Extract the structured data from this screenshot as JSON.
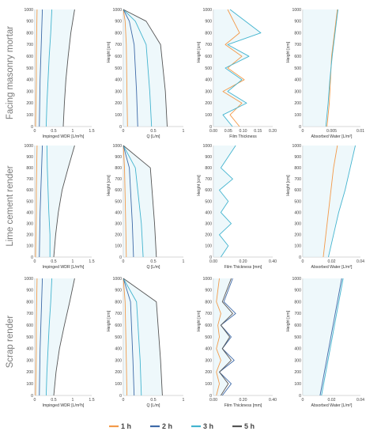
{
  "colors": {
    "1h": "#f39a4a",
    "2h": "#3e6aa8",
    "3h": "#43b4cf",
    "5h": "#555555",
    "green": "#79c14a",
    "fill": "#e3f3f9"
  },
  "rows": [
    {
      "title": "Facing masonry mortar"
    },
    {
      "title": "Lime cement render"
    },
    {
      "title": "Scrap render"
    }
  ],
  "legend": [
    {
      "name": "1 h",
      "color": "#f39a4a"
    },
    {
      "name": "2 h",
      "color": "#3e6aa8"
    },
    {
      "name": "3 h",
      "color": "#43b4cf"
    },
    {
      "name": "5 h",
      "color": "#555555"
    }
  ],
  "chart_data": [
    {
      "type": "line",
      "row": 0,
      "col": 0,
      "xlabel": "Impinged WDR [L/m²h]",
      "ylabel": "",
      "xlim": [
        0,
        1.5
      ],
      "ylim": [
        0,
        1000
      ],
      "xticks": [
        "0",
        "0.5",
        "1",
        "1.5"
      ],
      "yticks": [
        "0",
        "100",
        "200",
        "300",
        "400",
        "500",
        "600",
        "700",
        "800",
        "900",
        "1000"
      ],
      "series": [
        {
          "name": "1 h",
          "x": [
            0.02,
            0.03,
            0.04,
            0.04,
            0.05,
            0.06
          ],
          "y": [
            0,
            200,
            400,
            600,
            800,
            1000
          ]
        },
        {
          "name": "2 h",
          "x": [
            0.12,
            0.13,
            0.14,
            0.16,
            0.18,
            0.2
          ],
          "y": [
            0,
            200,
            400,
            600,
            800,
            1000
          ]
        },
        {
          "name": "3 h",
          "x": [
            0.3,
            0.32,
            0.35,
            0.38,
            0.42,
            0.45
          ],
          "y": [
            0,
            200,
            400,
            600,
            800,
            1000
          ]
        },
        {
          "name": "5 h",
          "x": [
            0.75,
            0.78,
            0.82,
            0.88,
            0.95,
            1.05
          ],
          "y": [
            0,
            200,
            400,
            600,
            800,
            1000
          ]
        }
      ]
    },
    {
      "type": "line",
      "row": 0,
      "col": 1,
      "xlabel": "Q [L/m]",
      "ylabel": "Height [cm]",
      "xlim": [
        0,
        1
      ],
      "ylim": [
        0,
        1000
      ],
      "xticks": [
        "0",
        "0.5",
        "1"
      ],
      "yticks": [
        "0",
        "100",
        "200",
        "300",
        "400",
        "500",
        "600",
        "700",
        "800",
        "900",
        "1000"
      ],
      "series": [
        {
          "name": "1 h",
          "x": [
            0.0,
            0.03,
            0.05,
            0.06,
            0.07
          ],
          "y": [
            1000,
            900,
            700,
            300,
            0
          ]
        },
        {
          "name": "2 h",
          "x": [
            0.0,
            0.1,
            0.18,
            0.22,
            0.24
          ],
          "y": [
            1000,
            900,
            700,
            300,
            0
          ]
        },
        {
          "name": "3 h",
          "x": [
            0.0,
            0.2,
            0.38,
            0.44,
            0.47
          ],
          "y": [
            1000,
            900,
            700,
            300,
            0
          ]
        },
        {
          "name": "5 h",
          "x": [
            0.0,
            0.38,
            0.62,
            0.7,
            0.73
          ],
          "y": [
            1000,
            900,
            700,
            300,
            0
          ]
        }
      ]
    },
    {
      "type": "line",
      "row": 0,
      "col": 2,
      "xlabel": "Film Thickness",
      "ylabel": "Height [cm]",
      "xlim": [
        0,
        0.25
      ],
      "ylim": [
        0,
        1000
      ],
      "xticks": [
        "0.00",
        "0.05",
        "0.10",
        "0.15",
        "0.20"
      ],
      "yticks": [
        "0",
        "100",
        "200",
        "300",
        "400",
        "500",
        "600",
        "700",
        "800",
        "900",
        "1000"
      ],
      "series": [
        {
          "name": "1 h",
          "x": [
            0.11,
            0.07,
            0.12,
            0.04,
            0.13,
            0.06,
            0.12,
            0.05,
            0.11,
            0.06
          ],
          "y": [
            0,
            100,
            200,
            300,
            400,
            500,
            600,
            700,
            800,
            1000
          ]
        },
        {
          "name": "3 h",
          "x": [
            0.08,
            0.04,
            0.14,
            0.06,
            0.12,
            0.05,
            0.15,
            0.06,
            0.2,
            0.07
          ],
          "y": [
            0,
            100,
            200,
            300,
            400,
            500,
            600,
            700,
            800,
            1000
          ]
        }
      ]
    },
    {
      "type": "line",
      "row": 0,
      "col": 3,
      "xlabel": "Absorbed Water [L/m²]",
      "ylabel": "Height [cm]",
      "xlim": [
        0,
        0.01
      ],
      "ylim": [
        0,
        1000
      ],
      "xticks": [
        "0",
        "0.005",
        "0.01"
      ],
      "yticks": [
        "0",
        "100",
        "200",
        "300",
        "400",
        "500",
        "600",
        "700",
        "800",
        "900",
        "1000"
      ],
      "series": [
        {
          "name": "1 h",
          "x": [
            0.0042,
            0.0046,
            0.0048,
            0.005,
            0.0055,
            0.006
          ],
          "y": [
            0,
            200,
            400,
            600,
            800,
            1000
          ]
        },
        {
          "name": "3 h",
          "x": [
            0.004,
            0.0044,
            0.0047,
            0.0051,
            0.0056,
            0.0061
          ],
          "y": [
            0,
            200,
            400,
            600,
            800,
            1000
          ]
        }
      ]
    },
    {
      "type": "line",
      "row": 1,
      "col": 0,
      "xlabel": "Impinged WDR [L/m²h]",
      "ylabel": "",
      "xlim": [
        0,
        1.5
      ],
      "ylim": [
        0,
        1000
      ],
      "xticks": [
        "0",
        "0.5",
        "1",
        "1.5"
      ],
      "yticks": [
        "0",
        "100",
        "200",
        "300",
        "400",
        "500",
        "600",
        "700",
        "800",
        "900",
        "1000"
      ],
      "series": [
        {
          "name": "1 h",
          "x": [
            0.02,
            0.03,
            0.04,
            0.04,
            0.05,
            0.06
          ],
          "y": [
            0,
            200,
            400,
            600,
            800,
            1000
          ]
        },
        {
          "name": "2 h",
          "x": [
            0.12,
            0.13,
            0.14,
            0.16,
            0.18,
            0.2
          ],
          "y": [
            0,
            200,
            400,
            600,
            800,
            1000
          ]
        },
        {
          "name": "3 h",
          "x": [
            0.4,
            0.4,
            0.37,
            0.35,
            0.33,
            0.32
          ],
          "y": [
            0,
            200,
            400,
            600,
            800,
            1000
          ]
        },
        {
          "name": "5 h",
          "x": [
            0.5,
            0.55,
            0.62,
            0.72,
            0.88,
            1.05
          ],
          "y": [
            0,
            200,
            400,
            600,
            800,
            1000
          ]
        }
      ]
    },
    {
      "type": "line",
      "row": 1,
      "col": 1,
      "xlabel": "Q [L/m]",
      "ylabel": "Height [cm]",
      "xlim": [
        0,
        1
      ],
      "ylim": [
        0,
        1000
      ],
      "xticks": [
        "0",
        "0.5",
        "1"
      ],
      "yticks": [
        "0",
        "100",
        "200",
        "300",
        "400",
        "500",
        "600",
        "700",
        "800",
        "900",
        "1000"
      ],
      "series": [
        {
          "name": "1 h",
          "x": [
            0.0,
            0.02,
            0.04,
            0.05
          ],
          "y": [
            1000,
            800,
            300,
            0
          ]
        },
        {
          "name": "2 h",
          "x": [
            0.0,
            0.1,
            0.15,
            0.17
          ],
          "y": [
            1000,
            800,
            300,
            0
          ]
        },
        {
          "name": "3 h",
          "x": [
            0.0,
            0.2,
            0.3,
            0.33
          ],
          "y": [
            1000,
            800,
            300,
            0
          ]
        },
        {
          "name": "5 h",
          "x": [
            0.0,
            0.45,
            0.52,
            0.55
          ],
          "y": [
            1000,
            800,
            300,
            0
          ]
        }
      ]
    },
    {
      "type": "line",
      "row": 1,
      "col": 2,
      "xlabel": "Film Thickness [mm]",
      "ylabel": "Height [cm]",
      "xlim": [
        0,
        0.4
      ],
      "ylim": [
        0,
        1000
      ],
      "xticks": [
        "0.00",
        "0.20",
        "0.40"
      ],
      "yticks": [
        "0",
        "100",
        "200",
        "300",
        "400",
        "500",
        "600",
        "700",
        "800",
        "900",
        "1000"
      ],
      "series": [
        {
          "name": "3 h",
          "x": [
            0.05,
            0.1,
            0.04,
            0.12,
            0.05,
            0.1,
            0.04,
            0.13,
            0.05,
            0.15
          ],
          "y": [
            0,
            100,
            200,
            300,
            400,
            500,
            600,
            700,
            800,
            1000
          ]
        }
      ]
    },
    {
      "type": "line",
      "row": 1,
      "col": 3,
      "xlabel": "Absorbed Water [L/m²]",
      "ylabel": "Height [cm]",
      "xlim": [
        0,
        0.045
      ],
      "ylim": [
        0,
        1000
      ],
      "xticks": [
        "0",
        "0.02",
        "0.04"
      ],
      "yticks": [
        "0",
        "100",
        "200",
        "300",
        "400",
        "500",
        "600",
        "700",
        "800",
        "900",
        "1000"
      ],
      "series": [
        {
          "name": "1 h",
          "x": [
            0.016,
            0.018,
            0.02,
            0.022,
            0.024,
            0.027
          ],
          "y": [
            0,
            200,
            400,
            600,
            800,
            1000
          ]
        },
        {
          "name": "3 h",
          "x": [
            0.02,
            0.024,
            0.028,
            0.033,
            0.037,
            0.041
          ],
          "y": [
            0,
            200,
            400,
            600,
            800,
            1000
          ]
        }
      ]
    },
    {
      "type": "line",
      "row": 2,
      "col": 0,
      "xlabel": "Impinged WDR [L/m²h]",
      "ylabel": "",
      "xlim": [
        0,
        1.5
      ],
      "ylim": [
        0,
        1000
      ],
      "xticks": [
        "0",
        "0.5",
        "1",
        "1.5"
      ],
      "yticks": [
        "0",
        "100",
        "200",
        "300",
        "400",
        "500",
        "600",
        "700",
        "800",
        "900",
        "1000"
      ],
      "series": [
        {
          "name": "1 h",
          "x": [
            0.02,
            0.03,
            0.04,
            0.04,
            0.05,
            0.06
          ],
          "y": [
            0,
            200,
            400,
            600,
            800,
            1000
          ]
        },
        {
          "name": "2 h",
          "x": [
            0.12,
            0.13,
            0.14,
            0.16,
            0.18,
            0.2
          ],
          "y": [
            0,
            200,
            400,
            600,
            800,
            1000
          ]
        },
        {
          "name": "3 h",
          "x": [
            0.3,
            0.32,
            0.35,
            0.38,
            0.42,
            0.45
          ],
          "y": [
            0,
            200,
            400,
            600,
            800,
            1000
          ]
        },
        {
          "name": "5 h",
          "x": [
            0.5,
            0.56,
            0.65,
            0.78,
            0.92,
            1.05
          ],
          "y": [
            0,
            200,
            400,
            600,
            800,
            1000
          ]
        }
      ]
    },
    {
      "type": "line",
      "row": 2,
      "col": 1,
      "xlabel": "Q [L/m]",
      "ylabel": "Height [cm]",
      "xlim": [
        0,
        1
      ],
      "ylim": [
        0,
        1000
      ],
      "xticks": [
        "0",
        "0.5",
        "1"
      ],
      "yticks": [
        "0",
        "100",
        "200",
        "300",
        "400",
        "500",
        "600",
        "700",
        "800",
        "900",
        "1000"
      ],
      "series": [
        {
          "name": "1 h",
          "x": [
            0.0,
            0.03,
            0.05,
            0.06
          ],
          "y": [
            1000,
            800,
            300,
            0
          ]
        },
        {
          "name": "2 h",
          "x": [
            0.0,
            0.12,
            0.16,
            0.18
          ],
          "y": [
            1000,
            800,
            300,
            0
          ]
        },
        {
          "name": "3 h",
          "x": [
            0.0,
            0.22,
            0.28,
            0.3
          ],
          "y": [
            1000,
            800,
            300,
            0
          ]
        },
        {
          "name": "5 h",
          "x": [
            0.0,
            0.55,
            0.62,
            0.65
          ],
          "y": [
            1000,
            800,
            300,
            0
          ]
        }
      ]
    },
    {
      "type": "line",
      "row": 2,
      "col": 2,
      "xlabel": "Film Thickness [mm]",
      "ylabel": "Height [cm]",
      "xlim": [
        0,
        0.4
      ],
      "ylim": [
        0,
        1000
      ],
      "xticks": [
        "0.00",
        "0.20",
        "0.40"
      ],
      "yticks": [
        "0",
        "100",
        "200",
        "300",
        "400",
        "500",
        "600",
        "700",
        "800",
        "900",
        "1000"
      ],
      "series": [
        {
          "name": "1 h",
          "x": [
            0.02,
            0.04,
            0.02,
            0.05,
            0.02,
            0.04,
            0.03,
            0.05,
            0.02,
            0.04
          ],
          "y": [
            0,
            100,
            200,
            300,
            400,
            500,
            600,
            700,
            800,
            1000
          ]
        },
        {
          "name": "2 h",
          "x": [
            0.06,
            0.12,
            0.04,
            0.14,
            0.06,
            0.12,
            0.05,
            0.15,
            0.07,
            0.13
          ],
          "y": [
            0,
            100,
            200,
            300,
            400,
            500,
            600,
            700,
            800,
            1000
          ]
        },
        {
          "name": "5 h",
          "x": [
            0.05,
            0.1,
            0.04,
            0.12,
            0.06,
            0.11,
            0.05,
            0.13,
            0.06,
            0.12
          ],
          "y": [
            0,
            100,
            200,
            300,
            400,
            500,
            600,
            700,
            800,
            1000
          ]
        }
      ]
    },
    {
      "type": "line",
      "row": 2,
      "col": 3,
      "xlabel": "Absorbed Water [L/m²]",
      "ylabel": "Height [cm]",
      "xlim": [
        0,
        0.04
      ],
      "ylim": [
        0,
        1000
      ],
      "xticks": [
        "0",
        "0.02",
        "0.04"
      ],
      "yticks": [
        "0",
        "100",
        "200",
        "300",
        "400",
        "500",
        "600",
        "700",
        "800",
        "900",
        "1000"
      ],
      "series": [
        {
          "name": "2 h",
          "x": [
            0.012,
            0.015,
            0.018,
            0.021,
            0.024,
            0.027
          ],
          "y": [
            0,
            200,
            400,
            600,
            800,
            1000
          ]
        },
        {
          "name": "3 h",
          "x": [
            0.013,
            0.016,
            0.019,
            0.022,
            0.025,
            0.028
          ],
          "y": [
            0,
            200,
            400,
            600,
            800,
            1000
          ]
        }
      ]
    }
  ]
}
